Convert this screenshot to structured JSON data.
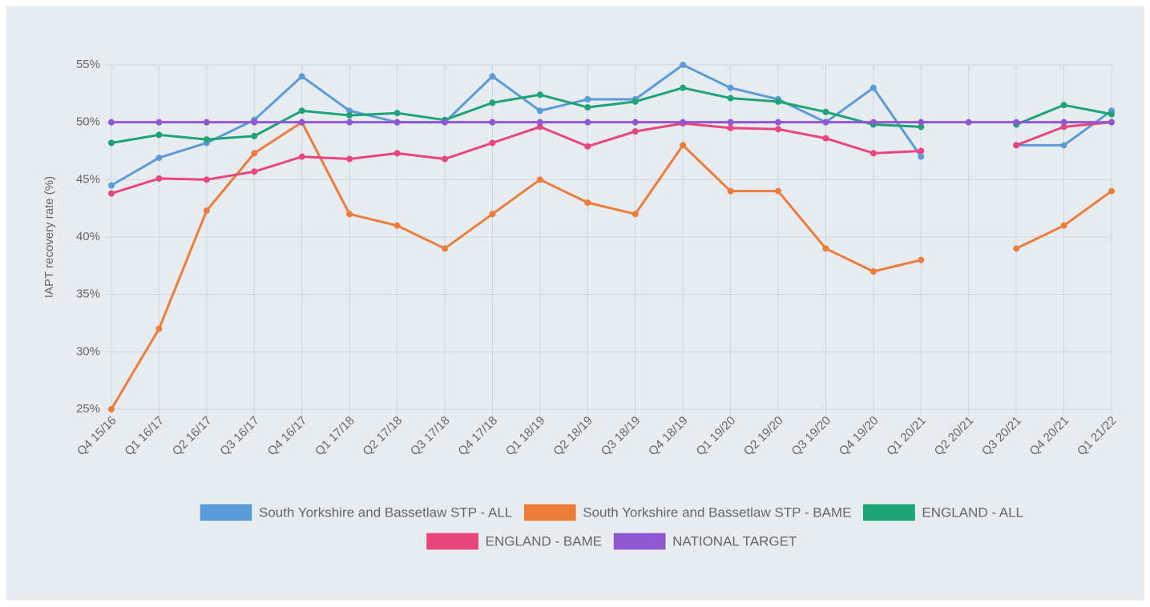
{
  "chart_data": {
    "type": "line",
    "y_label": "IAPT recovery rate (%)",
    "categories": [
      "Q4 15/16",
      "Q1 16/17",
      "Q2 16/17",
      "Q3 16/17",
      "Q4 16/17",
      "Q1 17/18",
      "Q2 17/18",
      "Q3 17/18",
      "Q4 17/18",
      "Q1 18/19",
      "Q2 18/19",
      "Q3 18/19",
      "Q4 18/19",
      "Q1 19/20",
      "Q2 19/20",
      "Q3 19/20",
      "Q4 19/20",
      "Q1 20/21",
      "Q2 20/21",
      "Q3 20/21",
      "Q4 20/21",
      "Q1 21/22"
    ],
    "series": [
      {
        "name": "South Yorkshire and Bassetlaw STP - ALL",
        "color": "#5b9bd8",
        "values": [
          44.5,
          46.9,
          48.2,
          50.2,
          54,
          51,
          50,
          50,
          54,
          51,
          52,
          52,
          55,
          53,
          52,
          50,
          53,
          47,
          null,
          48,
          48,
          51
        ]
      },
      {
        "name": "South Yorkshire and Bassetlaw STP - BAME",
        "color": "#ed7d3a",
        "values": [
          25,
          32,
          42.3,
          47.3,
          50,
          42,
          41,
          39,
          42,
          45,
          43,
          42,
          48,
          44,
          44,
          39,
          37,
          38,
          null,
          39,
          41,
          44
        ]
      },
      {
        "name": "ENGLAND - ALL",
        "color": "#1ea477",
        "values": [
          48.2,
          48.9,
          48.5,
          48.8,
          51,
          50.6,
          50.8,
          50.2,
          51.7,
          52.4,
          51.3,
          51.8,
          53,
          52.1,
          51.8,
          50.9,
          49.8,
          49.6,
          null,
          49.8,
          51.5,
          50.7
        ]
      },
      {
        "name": "ENGLAND - BAME",
        "color": "#e8467c",
        "values": [
          43.8,
          45.1,
          45,
          45.7,
          47,
          46.8,
          47.3,
          46.8,
          48.2,
          49.6,
          47.9,
          49.2,
          49.9,
          49.5,
          49.4,
          48.6,
          47.3,
          47.5,
          null,
          48,
          49.6,
          50
        ]
      },
      {
        "name": "NATIONAL TARGET",
        "color": "#9058d0",
        "values": [
          50,
          50,
          50,
          50,
          50,
          50,
          50,
          50,
          50,
          50,
          50,
          50,
          50,
          50,
          50,
          50,
          50,
          50,
          50,
          50,
          50,
          50
        ]
      }
    ],
    "ylim": [
      25,
      55
    ],
    "yticks": [
      {
        "value": 25,
        "label": "25%"
      },
      {
        "value": 30,
        "label": "30%"
      },
      {
        "value": 35,
        "label": "35%"
      },
      {
        "value": 40,
        "label": "40%"
      },
      {
        "value": 45,
        "label": "45%"
      },
      {
        "value": 50,
        "label": "50%"
      },
      {
        "value": 55,
        "label": "55%"
      }
    ],
    "grid": true,
    "legend": "bottom"
  }
}
